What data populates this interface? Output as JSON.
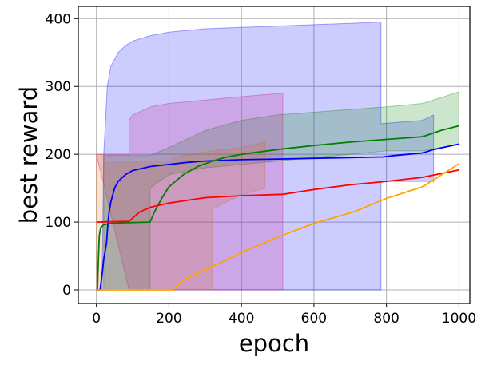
{
  "chart_data": {
    "type": "line",
    "title": "",
    "xlabel": "epoch",
    "ylabel": "best reward",
    "xlim": [
      -50,
      1030
    ],
    "ylim": [
      -20,
      418
    ],
    "xticks": [
      0,
      200,
      400,
      600,
      800,
      1000
    ],
    "yticks": [
      0,
      100,
      200,
      300,
      400
    ],
    "grid": true,
    "legend": "none",
    "series": [
      {
        "color": "#0000ff",
        "band_color": "#0000ff",
        "points": [
          [
            0,
            0
          ],
          [
            10,
            0
          ],
          [
            15,
            20
          ],
          [
            20,
            45
          ],
          [
            25,
            60
          ],
          [
            28,
            70
          ],
          [
            32,
            100
          ],
          [
            35,
            115
          ],
          [
            40,
            130
          ],
          [
            50,
            150
          ],
          [
            60,
            160
          ],
          [
            80,
            170
          ],
          [
            100,
            176
          ],
          [
            150,
            182
          ],
          [
            200,
            185
          ],
          [
            250,
            188
          ],
          [
            300,
            190
          ],
          [
            400,
            192
          ],
          [
            500,
            193
          ],
          [
            600,
            194
          ],
          [
            700,
            195
          ],
          [
            790,
            196
          ],
          [
            820,
            198
          ],
          [
            900,
            202
          ],
          [
            930,
            207
          ],
          [
            1000,
            215
          ]
        ],
        "band": [
          [
            5,
            0,
            0
          ],
          [
            15,
            0,
            0
          ],
          [
            20,
            0,
            200
          ],
          [
            30,
            0,
            300
          ],
          [
            40,
            0,
            330
          ],
          [
            60,
            0,
            350
          ],
          [
            80,
            0,
            360
          ],
          [
            100,
            0,
            367
          ],
          [
            150,
            0,
            375
          ],
          [
            200,
            0,
            380
          ],
          [
            300,
            0,
            385
          ],
          [
            400,
            0,
            387
          ],
          [
            500,
            0,
            389
          ],
          [
            600,
            0,
            391
          ],
          [
            700,
            0,
            393
          ],
          [
            785,
            0,
            395
          ],
          [
            785,
            160,
            245
          ],
          [
            900,
            160,
            250
          ],
          [
            930,
            160,
            258
          ],
          [
            930,
            158,
            258
          ]
        ]
      },
      {
        "color": "#008000",
        "band_color": "#008000",
        "points": [
          [
            0,
            0
          ],
          [
            3,
            0
          ],
          [
            5,
            40
          ],
          [
            8,
            80
          ],
          [
            12,
            92
          ],
          [
            20,
            96
          ],
          [
            40,
            98
          ],
          [
            80,
            99
          ],
          [
            148,
            100
          ],
          [
            160,
            115
          ],
          [
            180,
            135
          ],
          [
            200,
            152
          ],
          [
            240,
            170
          ],
          [
            280,
            182
          ],
          [
            320,
            190
          ],
          [
            360,
            196
          ],
          [
            400,
            200
          ],
          [
            500,
            207
          ],
          [
            600,
            213
          ],
          [
            700,
            218
          ],
          [
            800,
            222
          ],
          [
            900,
            226
          ],
          [
            950,
            235
          ],
          [
            1000,
            242
          ]
        ],
        "band": [
          [
            20,
            0,
            198
          ],
          [
            148,
            0,
            198
          ],
          [
            148,
            150,
            198
          ],
          [
            200,
            170,
            210
          ],
          [
            300,
            180,
            235
          ],
          [
            400,
            185,
            250
          ],
          [
            500,
            190,
            258
          ],
          [
            600,
            195,
            262
          ],
          [
            700,
            200,
            266
          ],
          [
            800,
            205,
            270
          ],
          [
            900,
            205,
            275
          ],
          [
            1000,
            215,
            292
          ]
        ]
      },
      {
        "color": "#ff0000",
        "band_color": "#c71585",
        "points": [
          [
            0,
            100
          ],
          [
            90,
            101
          ],
          [
            100,
            106
          ],
          [
            120,
            115
          ],
          [
            150,
            122
          ],
          [
            200,
            128
          ],
          [
            300,
            136
          ],
          [
            400,
            139
          ],
          [
            514,
            141
          ],
          [
            600,
            148
          ],
          [
            700,
            155
          ],
          [
            800,
            160
          ],
          [
            900,
            166
          ],
          [
            1000,
            177
          ]
        ],
        "band": [
          [
            0,
            200,
            200
          ],
          [
            90,
            0,
            200
          ],
          [
            90,
            0,
            250
          ],
          [
            100,
            0,
            258
          ],
          [
            150,
            0,
            270
          ],
          [
            200,
            0,
            275
          ],
          [
            300,
            0,
            280
          ],
          [
            400,
            0,
            285
          ],
          [
            514,
            0,
            290
          ]
        ]
      },
      {
        "color": "#ffa500",
        "band_color": "#d2691e",
        "points": [
          [
            0,
            0
          ],
          [
            210,
            0
          ],
          [
            240,
            15
          ],
          [
            300,
            30
          ],
          [
            350,
            42
          ],
          [
            400,
            55
          ],
          [
            500,
            78
          ],
          [
            600,
            98
          ],
          [
            710,
            115
          ],
          [
            800,
            135
          ],
          [
            900,
            152
          ],
          [
            1000,
            186
          ]
        ],
        "band": [
          [
            0,
            0,
            200
          ],
          [
            15,
            0,
            200
          ],
          [
            25,
            0,
            190
          ],
          [
            210,
            0,
            190
          ],
          [
            210,
            0,
            195
          ],
          [
            260,
            0,
            200
          ],
          [
            320,
            0,
            205
          ],
          [
            320,
            120,
            205
          ],
          [
            400,
            140,
            210
          ],
          [
            465,
            150,
            218
          ],
          [
            465,
            150,
            218
          ]
        ]
      }
    ]
  }
}
